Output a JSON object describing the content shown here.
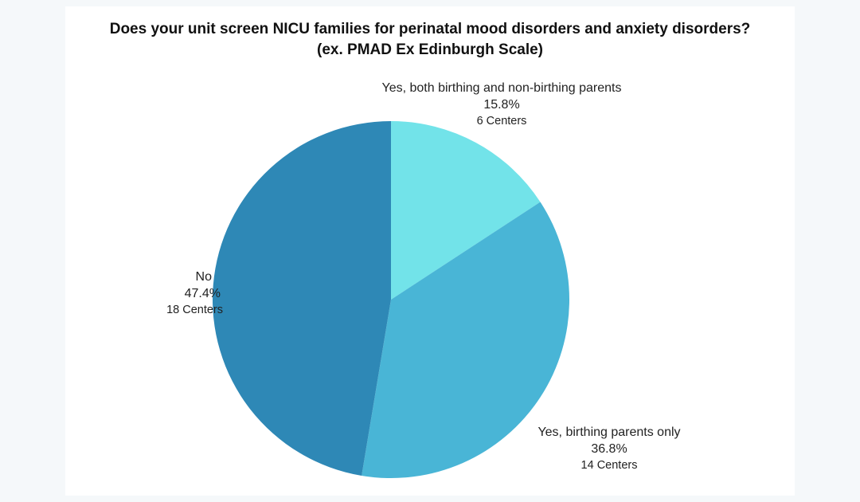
{
  "chart_data": {
    "type": "pie",
    "title": "Does your unit screen NICU families for perinatal mood disorders and anxiety disorders?",
    "subtitle": "(ex. PMAD Ex Edinburgh Scale)",
    "slices": [
      {
        "label": "Yes, both birthing and non-birthing parents",
        "percent_label": "15.8%",
        "value": 6,
        "count_label": "6 Centers",
        "color": "#72e3e9"
      },
      {
        "label": "Yes, birthing parents only",
        "percent_label": "36.8%",
        "value": 14,
        "count_label": "14 Centers",
        "color": "#49b5d6"
      },
      {
        "label": "No",
        "percent_label": "47.4%",
        "value": 18,
        "count_label": "18 Centers",
        "color": "#2e88b6"
      }
    ],
    "start_angle": "12 o'clock",
    "direction": "clockwise",
    "legend": "none"
  }
}
